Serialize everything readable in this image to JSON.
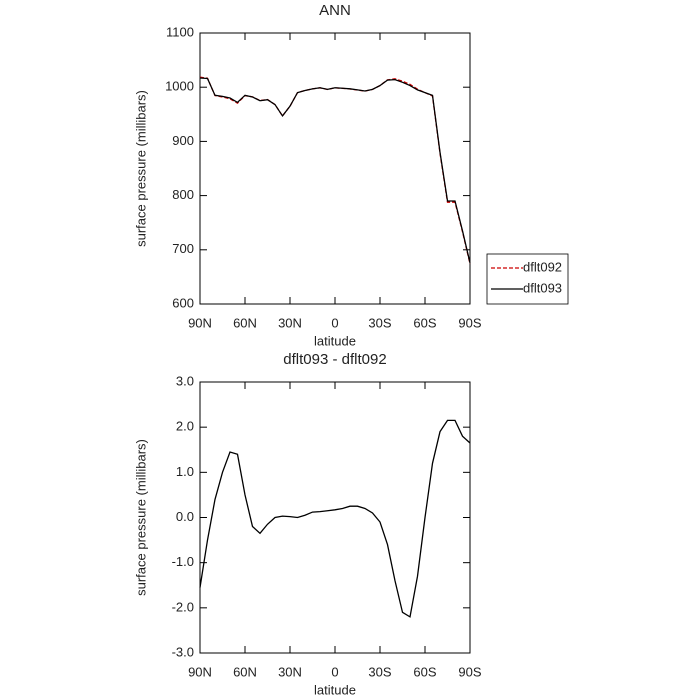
{
  "chart_data": [
    {
      "type": "line",
      "title": "ANN",
      "xlabel": "latitude",
      "ylabel": "surface pressure (millibars)",
      "x": [
        90,
        85,
        80,
        75,
        70,
        65,
        60,
        55,
        50,
        45,
        40,
        35,
        30,
        25,
        20,
        15,
        10,
        5,
        0,
        -5,
        -10,
        -15,
        -20,
        -25,
        -30,
        -35,
        -40,
        -45,
        -50,
        -55,
        -60,
        -65,
        -70,
        -75,
        -80,
        -85,
        -90
      ],
      "xlim": [
        90,
        -90
      ],
      "xticks": [
        {
          "value": 90,
          "label": "90N"
        },
        {
          "value": 60,
          "label": "60N"
        },
        {
          "value": 30,
          "label": "30N"
        },
        0,
        {
          "value": -30,
          "label": "30S"
        },
        {
          "value": -60,
          "label": "60S"
        },
        {
          "value": -90,
          "label": "90S"
        }
      ],
      "ylim": [
        600,
        1100
      ],
      "yticks": [
        600,
        700,
        800,
        900,
        1000,
        1100
      ],
      "legend": "right",
      "series": [
        {
          "name": "dflt092",
          "color": "#cc0000",
          "dashed": true,
          "values": [
            1018.55,
            1016.5,
            984.6,
            982,
            978.55,
            970.6,
            984.5,
            982.2,
            975.35,
            977.15,
            968,
            946.97,
            964.98,
            990,
            993.95,
            996.88,
            998.87,
            995.85,
            998.83,
            997.8,
            996.75,
            994.75,
            992.8,
            995.9,
            1003.1,
            1013.6,
            1015.4,
            1011.1,
            1005.2,
            996.3,
            990,
            983.8,
            878.1,
            787.85,
            787.85,
            733.2,
            674.35
          ]
        },
        {
          "name": "dflt093",
          "color": "#000000",
          "dashed": false,
          "values": [
            1017,
            1016,
            985,
            983,
            980,
            972,
            985,
            982,
            975,
            977,
            968,
            947,
            965,
            990,
            994,
            997,
            999,
            996,
            999,
            998,
            997,
            995,
            993,
            996,
            1003,
            1013,
            1014,
            1009,
            1003,
            995,
            990,
            985,
            880,
            790,
            790,
            735,
            676
          ]
        }
      ]
    },
    {
      "type": "line",
      "title": "dflt093 - dflt092",
      "xlabel": "latitude",
      "ylabel": "surface pressure (millibars)",
      "x": [
        90,
        85,
        80,
        75,
        70,
        65,
        60,
        55,
        50,
        45,
        40,
        35,
        30,
        25,
        20,
        15,
        10,
        5,
        0,
        -5,
        -10,
        -15,
        -20,
        -25,
        -30,
        -35,
        -40,
        -45,
        -50,
        -55,
        -60,
        -65,
        -70,
        -75,
        -80,
        -85,
        -90
      ],
      "xlim": [
        90,
        -90
      ],
      "xticks": [
        {
          "value": 90,
          "label": "90N"
        },
        {
          "value": 60,
          "label": "60N"
        },
        {
          "value": 30,
          "label": "30N"
        },
        0,
        {
          "value": -30,
          "label": "30S"
        },
        {
          "value": -60,
          "label": "60S"
        },
        {
          "value": -90,
          "label": "90S"
        }
      ],
      "ylim": [
        -3,
        3
      ],
      "yticks": [
        {
          "value": -3,
          "label": "-3.0"
        },
        {
          "value": -2,
          "label": "-2.0"
        },
        {
          "value": -1,
          "label": "-1.0"
        },
        {
          "value": 0,
          "label": "0.0"
        },
        {
          "value": 1,
          "label": "1.0"
        },
        {
          "value": 2,
          "label": "2.0"
        },
        {
          "value": 3,
          "label": "3.0"
        }
      ],
      "color": "#000000",
      "values": [
        -1.55,
        -0.5,
        0.4,
        1.0,
        1.45,
        1.4,
        0.5,
        -0.2,
        -0.35,
        -0.15,
        0.0,
        0.03,
        0.02,
        0.0,
        0.05,
        0.12,
        0.13,
        0.15,
        0.17,
        0.2,
        0.25,
        0.25,
        0.2,
        0.1,
        -0.1,
        -0.6,
        -1.4,
        -2.1,
        -2.2,
        -1.3,
        0.0,
        1.2,
        1.9,
        2.15,
        2.15,
        1.8,
        1.65
      ]
    }
  ]
}
